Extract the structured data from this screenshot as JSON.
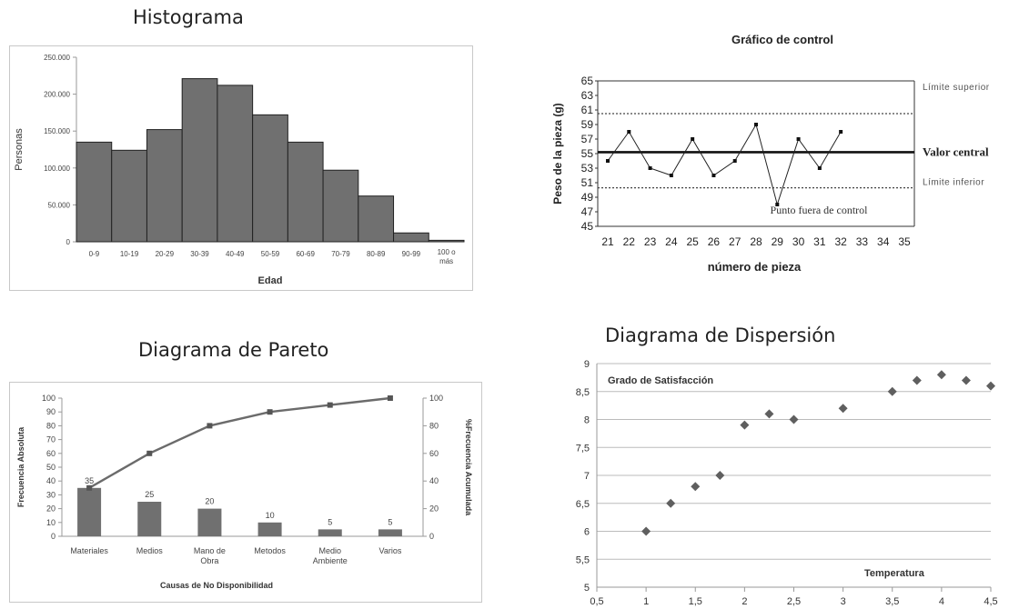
{
  "panels": {
    "histogram_title": "Histograma",
    "pareto_title": "Diagrama de Pareto",
    "scatter_title": "Diagrama de Dispersión"
  },
  "colors": {
    "bar_fill": "#707070",
    "bar_stroke": "#222222",
    "pareto_line": "#6b6b6b",
    "marker": "#5f5f5f",
    "grid": "#bbbbbb",
    "axis": "#999999"
  },
  "chart_data": [
    {
      "id": "histogram",
      "type": "bar",
      "title": "Histograma",
      "xlabel": "Edad",
      "ylabel": "Personas",
      "categories": [
        "0-9",
        "10-19",
        "20-29",
        "30-39",
        "40-49",
        "50-59",
        "60-69",
        "70-79",
        "80-89",
        "90-99",
        "100 o más"
      ],
      "values": [
        135000,
        124000,
        152000,
        221000,
        212000,
        172000,
        135000,
        97000,
        62000,
        12000,
        2000
      ],
      "ylim": [
        0,
        250000
      ],
      "yticks": [
        "0",
        "50.000",
        "100.000",
        "150.000",
        "200.000",
        "250.000"
      ],
      "grid": false
    },
    {
      "id": "control",
      "type": "line",
      "title": "Gráfico de control",
      "xlabel": "número de pieza",
      "ylabel": "Peso de la pieza (g)",
      "x": [
        21,
        22,
        23,
        24,
        25,
        26,
        27,
        28,
        29,
        30,
        31,
        32
      ],
      "values": [
        54,
        58,
        53,
        52,
        57,
        52,
        54,
        59,
        48,
        57,
        53,
        58
      ],
      "xticks": [
        "21",
        "22",
        "23",
        "24",
        "25",
        "26",
        "27",
        "28",
        "29",
        "30",
        "31",
        "32",
        "33",
        "34",
        "35"
      ],
      "xlim": [
        21,
        35
      ],
      "ylim": [
        45,
        65
      ],
      "yticks": [
        "45",
        "47",
        "49",
        "51",
        "53",
        "55",
        "57",
        "59",
        "61",
        "63",
        "65"
      ],
      "upper_limit": 60.5,
      "center_value": 55.2,
      "lower_limit": 50.3,
      "upper_label": "Límite superior",
      "center_label": "Valor central",
      "lower_label": "Límite inferior",
      "annotation": "Punto fuera de control"
    },
    {
      "id": "pareto",
      "type": "bar",
      "title": "Diagrama de Pareto",
      "xlabel": "Causas de No Disponibilidad",
      "ylabel": "Frecuencia Absoluta",
      "y2label": "%Frecuencia Acumulada",
      "categories": [
        "Materiales",
        "Medios",
        "Mano de Obra",
        "Metodos",
        "Medio Ambiente",
        "Varios"
      ],
      "category_lines": [
        [
          "Materiales"
        ],
        [
          "Medios"
        ],
        [
          "Mano de",
          "Obra"
        ],
        [
          "Metodos"
        ],
        [
          "Medio",
          "Ambiente"
        ],
        [
          "Varios"
        ]
      ],
      "values": [
        35,
        25,
        20,
        10,
        5,
        5
      ],
      "data_labels": [
        "35",
        "25",
        "20",
        "10",
        "5",
        "5"
      ],
      "cumulative": [
        35,
        60,
        80,
        90,
        95,
        100
      ],
      "ylim": [
        0,
        100
      ],
      "yticks": [
        "0",
        "10",
        "20",
        "30",
        "40",
        "50",
        "60",
        "70",
        "80",
        "90",
        "100"
      ],
      "y2lim": [
        0,
        100
      ],
      "y2ticks": [
        "0",
        "20",
        "40",
        "60",
        "80",
        "100"
      ]
    },
    {
      "id": "scatter",
      "type": "scatter",
      "title": "Diagrama de Dispersión",
      "xlabel": "Temperatura",
      "ylabel": "Grado de Satisfacción",
      "x": [
        1,
        1.25,
        1.5,
        1.75,
        2,
        2.25,
        2.5,
        3,
        3.5,
        3.75,
        4,
        4.25,
        4.5
      ],
      "values": [
        6,
        6.5,
        6.8,
        7,
        7.9,
        8.1,
        8,
        8.2,
        8.5,
        8.7,
        8.8,
        8.7,
        8.6
      ],
      "xlim": [
        0.5,
        4.5
      ],
      "ylim": [
        5,
        9
      ],
      "xticks": [
        "0,5",
        "1",
        "1,5",
        "2",
        "2,5",
        "3",
        "3,5",
        "4",
        "4,5"
      ],
      "yticks": [
        "5",
        "5,5",
        "6",
        "6,5",
        "7",
        "7,5",
        "8",
        "8,5",
        "9"
      ],
      "grid": true
    }
  ]
}
